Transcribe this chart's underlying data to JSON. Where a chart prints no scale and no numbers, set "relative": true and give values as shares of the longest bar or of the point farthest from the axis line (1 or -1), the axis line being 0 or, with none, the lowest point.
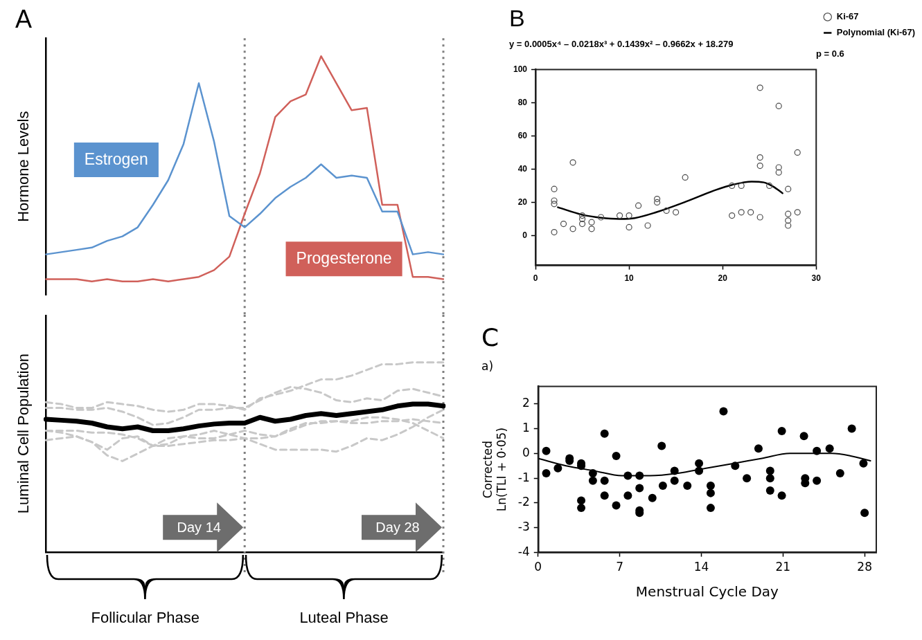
{
  "chart_data": [
    {
      "type": "line",
      "title": "A",
      "ylabel": "Hormone Levels",
      "relative": true,
      "categories": [
        null,
        null,
        null,
        null,
        null,
        null,
        null,
        null,
        null,
        null,
        null,
        null,
        null,
        null,
        null,
        null,
        null,
        null,
        null,
        null,
        null,
        null,
        null,
        null,
        null,
        null,
        null
      ],
      "ref_lines": [
        {
          "axis": "x",
          "line_style": "dotted",
          "color": "#7f7f7f"
        },
        {
          "axis": "x",
          "line_style": "dotted",
          "color": "#7f7f7f"
        }
      ],
      "series": [
        {
          "name": "Estrogen",
          "color": "#5b93cf",
          "values": [
            0.12,
            0.13,
            0.14,
            0.15,
            0.18,
            0.2,
            0.24,
            0.34,
            0.45,
            0.61,
            0.88,
            0.62,
            0.29,
            0.24,
            0.3,
            0.37,
            0.42,
            0.46,
            0.52,
            0.46,
            0.47,
            0.46,
            0.31,
            0.31,
            0.12,
            0.13,
            0.12
          ]
        },
        {
          "name": "Progesterone",
          "color": "#d0605a",
          "values": [
            0.01,
            0.01,
            0.01,
            0,
            0.01,
            0,
            0,
            0.01,
            0,
            0.01,
            0.02,
            0.05,
            0.11,
            0.3,
            0.48,
            0.73,
            0.8,
            0.83,
            1,
            0.88,
            0.76,
            0.77,
            0.34,
            0.34,
            0.02,
            0.02,
            0.01
          ]
        }
      ]
    },
    {
      "type": "line",
      "ylabel": "Luminal Cell Population",
      "relative": true,
      "categories": [
        null,
        null,
        null,
        null,
        null,
        null,
        null,
        null,
        null,
        null,
        null,
        null,
        null,
        null,
        null,
        null,
        null,
        null,
        null,
        null,
        null,
        null,
        null,
        null,
        null,
        null,
        null
      ],
      "ref_lines": [
        {
          "axis": "x",
          "label": "Day 14",
          "line_style": "dotted",
          "color": "#7f7f7f"
        },
        {
          "axis": "x",
          "label": "Day 28",
          "line_style": "dotted",
          "color": "#7f7f7f"
        }
      ],
      "annotations": [
        "Follicular Phase",
        "Luteal Phase"
      ],
      "series": [
        {
          "color": "#c8c8c8",
          "line_style": "dashed",
          "values": [
            0.79,
            0.78,
            0.76,
            0.76,
            0.79,
            0.78,
            0.77,
            0.75,
            0.74,
            0.75,
            0.78,
            0.78,
            0.77,
            0.75,
            0.81,
            0.83,
            0.85,
            0.88,
            0.91,
            0.91,
            0.93,
            0.96,
            0.99,
            0.99,
            1.0,
            1.0,
            1.0
          ]
        },
        {
          "color": "#c8c8c8",
          "line_style": "dashed",
          "values": [
            0.76,
            0.76,
            0.75,
            0.75,
            0.76,
            0.74,
            0.71,
            0.67,
            0.68,
            0.71,
            0.75,
            0.75,
            0.76,
            0.76,
            0.8,
            0.84,
            0.87,
            0.86,
            0.84,
            0.8,
            0.79,
            0.81,
            0.8,
            0.85,
            0.86,
            0.84,
            0.82
          ]
        },
        {
          "color": "#c8c8c8",
          "line_style": "dashed",
          "values": [
            0.64,
            0.63,
            0.61,
            0.58,
            0.51,
            0.48,
            0.52,
            0.56,
            0.6,
            0.61,
            0.6,
            0.6,
            0.62,
            0.64,
            0.62,
            0.61,
            0.64,
            0.67,
            0.69,
            0.69,
            0.68,
            0.68,
            0.69,
            0.69,
            0.7,
            0.69,
            0.68
          ]
        },
        {
          "color": "#c8c8c8",
          "line_style": "dashed",
          "values": [
            0.59,
            0.6,
            0.61,
            0.58,
            0.54,
            0.6,
            0.61,
            0.56,
            0.57,
            0.61,
            0.62,
            0.64,
            0.62,
            0.6,
            0.57,
            0.54,
            0.54,
            0.54,
            0.54,
            0.53,
            0.56,
            0.6,
            0.59,
            0.62,
            0.66,
            0.71,
            0.75
          ]
        },
        {
          "color": "#c8c8c8",
          "line_style": "dashed",
          "values": [
            0.64,
            0.64,
            0.64,
            0.63,
            0.63,
            0.62,
            0.6,
            0.56,
            0.56,
            0.57,
            0.58,
            0.59,
            0.59,
            0.6,
            0.6,
            0.61,
            0.65,
            0.68,
            0.68,
            0.69,
            0.69,
            0.71,
            0.71,
            0.7,
            0.68,
            0.64,
            0.6
          ]
        },
        {
          "color": "#000000",
          "values": [
            0.7,
            0.695,
            0.69,
            0.68,
            0.66,
            0.65,
            0.66,
            0.64,
            0.64,
            0.65,
            0.665,
            0.675,
            0.68,
            0.68,
            0.71,
            0.69,
            0.7,
            0.72,
            0.73,
            0.72,
            0.73,
            0.74,
            0.75,
            0.77,
            0.78,
            0.78,
            0.77
          ]
        }
      ]
    },
    {
      "type": "scatter",
      "title": "B",
      "subtitle": "y = 0.0005x⁴ – 0.0218x³ + 0.1439x² – 0.9662x + 18.279",
      "annotations": [
        "p = 0.6"
      ],
      "marker": "circle",
      "legend": "right",
      "xlim": [
        0,
        30
      ],
      "xticks": [
        0,
        10,
        20,
        30
      ],
      "ylim": [
        -18,
        100
      ],
      "yticks": [
        0,
        20,
        40,
        60,
        80,
        100
      ],
      "series": [
        {
          "name": "Ki-67",
          "color": "#4d4d4d",
          "x": [
            2,
            2,
            2,
            2,
            3,
            4,
            4,
            5,
            5,
            5,
            6,
            6,
            7,
            9,
            10,
            10,
            11,
            12,
            13,
            13,
            14,
            15,
            16,
            21,
            21,
            22,
            22,
            23,
            24,
            24,
            24,
            24,
            25,
            26,
            26,
            26,
            27,
            27,
            27,
            27,
            28,
            28
          ],
          "values": [
            2,
            19,
            21,
            28,
            7,
            44,
            4,
            12,
            10,
            7,
            8,
            4,
            11,
            12,
            12,
            5,
            18,
            6,
            22,
            20,
            15,
            14,
            35,
            30,
            12,
            30,
            14,
            14,
            89,
            47,
            42,
            11,
            30,
            78,
            41,
            38,
            28,
            13,
            9,
            6,
            50,
            14
          ]
        },
        {
          "name": "Polynomial (Ki-67)",
          "type": "line",
          "marker": "none",
          "color": "#000000",
          "x": [
            2.4,
            5,
            7,
            9,
            10.6,
            12.9,
            15.9,
            19.3,
            21,
            23.1,
            24.4,
            25.4,
            26.4
          ],
          "values": [
            17,
            12.5,
            10.7,
            10,
            10.5,
            14,
            20,
            27.5,
            30.5,
            32.5,
            32,
            29.5,
            25.5
          ]
        }
      ]
    },
    {
      "type": "scatter",
      "title": "C",
      "subtitle": "a)",
      "xlabel": "Menstrual Cycle Day",
      "ylabel": "Corrected\nLn(TLI + 0·05)",
      "marker": "circle",
      "xlim": [
        0,
        29
      ],
      "xticks": [
        0,
        7,
        14,
        21,
        28
      ],
      "ylim": [
        -4,
        2.7
      ],
      "yticks": [
        -4,
        -3,
        -2,
        -1,
        0,
        1,
        2
      ],
      "series": [
        {
          "color": "#000000",
          "x": [
            0.7,
            0.7,
            1.7,
            2.7,
            2.7,
            3.7,
            3.7,
            3.7,
            3.7,
            4.7,
            4.7,
            5.7,
            5.7,
            5.7,
            6.7,
            6.7,
            7.7,
            7.7,
            8.7,
            8.7,
            8.7,
            8.7,
            9.8,
            10.6,
            10.7,
            11.7,
            11.7,
            12.8,
            13.8,
            13.8,
            14.8,
            14.8,
            14.8,
            15.9,
            16.9,
            17.9,
            18.9,
            19.9,
            19.9,
            19.9,
            20.9,
            20.9,
            22.8,
            22.9,
            22.9,
            23.9,
            23.9,
            25,
            25.9,
            26.9,
            27.9,
            28
          ],
          "values": [
            0.1,
            -0.8,
            -0.6,
            -0.2,
            -0.3,
            -0.4,
            -0.5,
            -1.9,
            -2.2,
            -0.8,
            -1.1,
            0.8,
            -1.1,
            -1.7,
            -0.1,
            -2.1,
            -0.9,
            -1.7,
            -0.9,
            -1.4,
            -2.3,
            -2.4,
            -1.8,
            0.3,
            -1.3,
            -0.7,
            -1.1,
            -1.3,
            -0.4,
            -0.7,
            -1.3,
            -1.6,
            -2.2,
            1.7,
            -0.5,
            -1,
            0.2,
            -0.7,
            -1,
            -1.5,
            0.9,
            -1.7,
            0.7,
            -1,
            -1.2,
            0.1,
            -1.1,
            0.2,
            -0.8,
            1,
            -0.4,
            -2.4
          ]
        },
        {
          "type": "line",
          "marker": "none",
          "color": "#000000",
          "x": [
            0,
            2.4,
            4.8,
            7.2,
            9.6,
            12,
            14.4,
            16.8,
            19.2,
            21.6,
            23.7,
            25.2,
            26.8,
            28.5
          ],
          "values": [
            -0.2,
            -0.5,
            -0.7,
            -0.9,
            -0.9,
            -0.8,
            -0.6,
            -0.4,
            -0.2,
            0,
            0,
            0,
            -0.1,
            -0.3
          ]
        }
      ]
    }
  ]
}
